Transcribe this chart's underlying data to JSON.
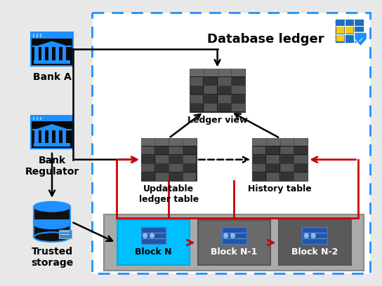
{
  "bg_color": "#e8e8e8",
  "white_inner": true,
  "title": "Database ledger",
  "bank_a_label": "Bank A",
  "bank_reg_label": "Bank\nRegulator",
  "trusted_label": "Trusted\nstorage",
  "ledger_view_label": "Ledger view",
  "updatable_label": "Updatable\nledger table",
  "history_label": "History table",
  "block_n_label": "Block N",
  "block_n1_label": "Block N-1",
  "block_n2_label": "Block N-2",
  "dashed_color": "#1e90ff",
  "red_color": "#cc0000",
  "black_color": "#000000",
  "cyan_block": "#00bfff",
  "gray_block": "#6a6a6a",
  "dark_gray_block": "#5a5a5a",
  "block_area_color": "#999999"
}
